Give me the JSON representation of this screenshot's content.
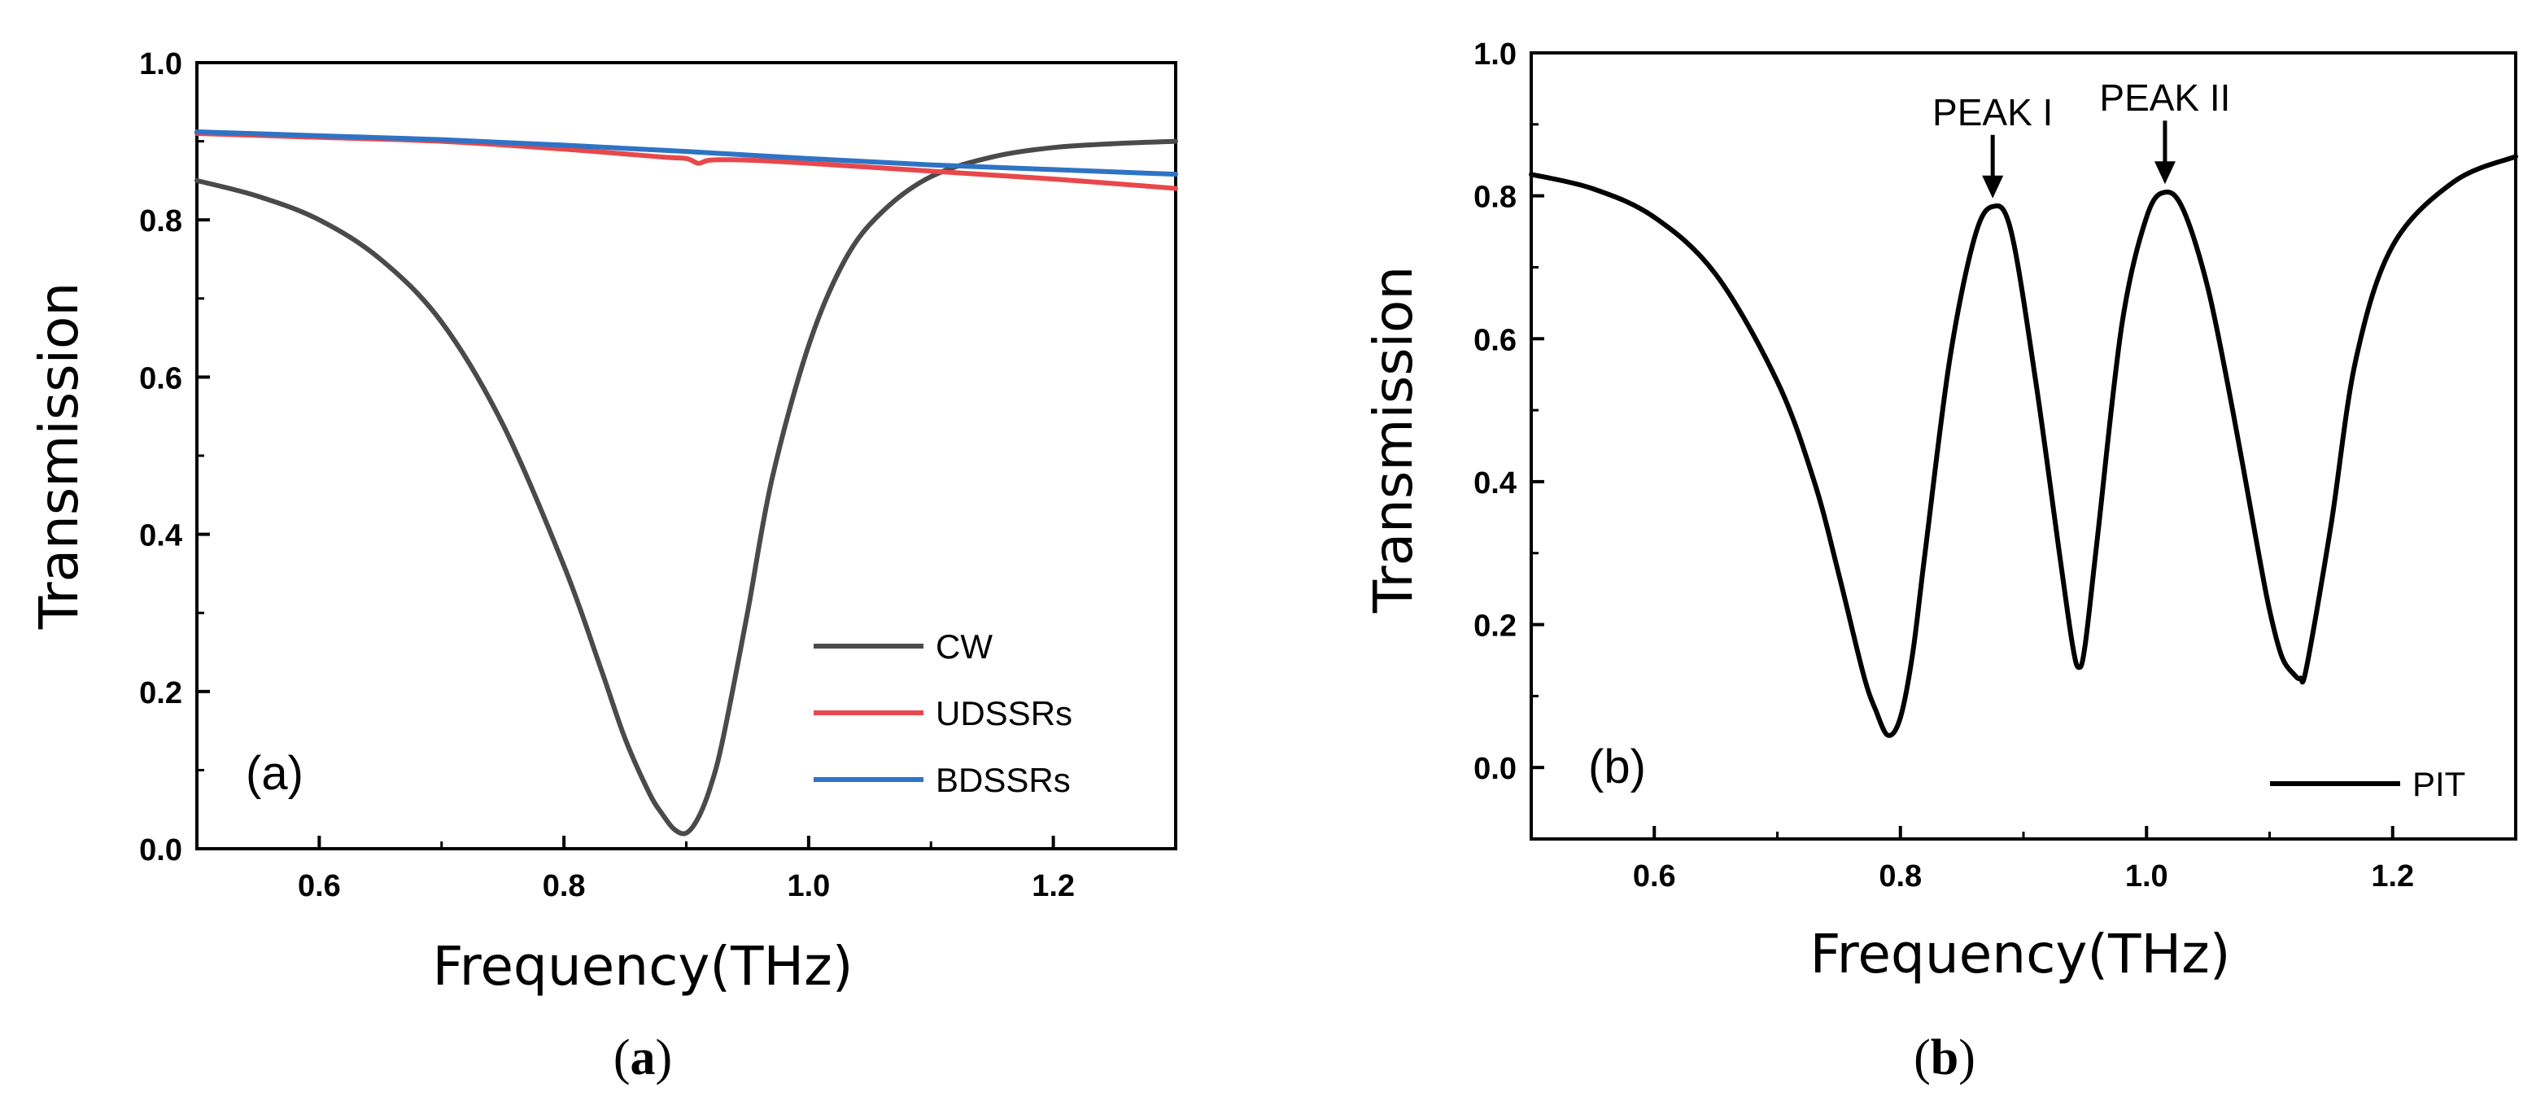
{
  "chart_data": [
    {
      "type": "line",
      "panel_tag": "(a)",
      "caption_open": "(",
      "caption_letter": "a",
      "caption_close": ")",
      "xlabel": "Frequency(THz)",
      "ylabel": "Transmission",
      "xlim": [
        0.5,
        1.3
      ],
      "ylim": [
        0.0,
        1.0
      ],
      "xticks": [
        0.6,
        0.8,
        1.0,
        1.2
      ],
      "xtick_labels": [
        "0.6",
        "0.8",
        "1.0",
        "1.2"
      ],
      "yticks": [
        0.0,
        0.2,
        0.4,
        0.6,
        0.8,
        1.0
      ],
      "ytick_labels": [
        "0.0",
        "0.2",
        "0.4",
        "0.6",
        "0.8",
        "1.0"
      ],
      "legend_position": "bottom-right",
      "series": [
        {
          "name": "CW",
          "color": "#4a4a4a",
          "x": [
            0.5,
            0.55,
            0.6,
            0.65,
            0.7,
            0.75,
            0.8,
            0.83,
            0.85,
            0.87,
            0.88,
            0.89,
            0.9,
            0.91,
            0.92,
            0.93,
            0.95,
            0.97,
            1.0,
            1.03,
            1.06,
            1.1,
            1.15,
            1.2,
            1.25,
            1.3
          ],
          "y": [
            0.85,
            0.83,
            0.8,
            0.75,
            0.67,
            0.54,
            0.36,
            0.23,
            0.14,
            0.07,
            0.045,
            0.025,
            0.02,
            0.04,
            0.08,
            0.14,
            0.3,
            0.47,
            0.64,
            0.75,
            0.81,
            0.855,
            0.88,
            0.892,
            0.897,
            0.9
          ]
        },
        {
          "name": "UDSSRs",
          "color": "#e8474c",
          "x": [
            0.5,
            0.6,
            0.7,
            0.8,
            0.88,
            0.9,
            0.91,
            0.92,
            0.95,
            1.0,
            1.1,
            1.2,
            1.3
          ],
          "y": [
            0.91,
            0.905,
            0.9,
            0.89,
            0.88,
            0.878,
            0.872,
            0.876,
            0.876,
            0.872,
            0.862,
            0.852,
            0.84
          ]
        },
        {
          "name": "BDSSRs",
          "color": "#2f73c4",
          "x": [
            0.5,
            0.6,
            0.7,
            0.8,
            0.9,
            1.0,
            1.1,
            1.2,
            1.3
          ],
          "y": [
            0.912,
            0.907,
            0.902,
            0.895,
            0.887,
            0.878,
            0.87,
            0.864,
            0.858
          ]
        }
      ]
    },
    {
      "type": "line",
      "panel_tag": "(b)",
      "caption_open": "(",
      "caption_letter": "b",
      "caption_close": ")",
      "xlabel": "Frequency(THz)",
      "ylabel": "Transmission",
      "xlim": [
        0.5,
        1.3
      ],
      "ylim": [
        -0.1,
        1.0
      ],
      "xticks": [
        0.6,
        0.8,
        1.0,
        1.2
      ],
      "xtick_labels": [
        "0.6",
        "0.8",
        "1.0",
        "1.2"
      ],
      "yticks": [
        0.0,
        0.2,
        0.4,
        0.6,
        0.8,
        1.0
      ],
      "ytick_labels": [
        "0.0",
        "0.2",
        "0.4",
        "0.6",
        "0.8",
        "1.0"
      ],
      "legend_position": "bottom-right",
      "annotations": [
        {
          "text": "PEAK I",
          "x": 0.875,
          "y": 0.785
        },
        {
          "text": "PEAK II",
          "x": 1.015,
          "y": 0.805
        }
      ],
      "series": [
        {
          "name": "PIT",
          "color": "#000000",
          "x": [
            0.5,
            0.55,
            0.6,
            0.65,
            0.7,
            0.73,
            0.75,
            0.77,
            0.78,
            0.79,
            0.8,
            0.81,
            0.82,
            0.84,
            0.86,
            0.875,
            0.89,
            0.91,
            0.93,
            0.94,
            0.945,
            0.95,
            0.96,
            0.98,
            1.0,
            1.015,
            1.03,
            1.05,
            1.07,
            1.09,
            1.1,
            1.11,
            1.12,
            1.125,
            1.13,
            1.15,
            1.17,
            1.2,
            1.25,
            1.3
          ],
          "y": [
            0.83,
            0.81,
            0.77,
            0.69,
            0.54,
            0.4,
            0.27,
            0.13,
            0.08,
            0.045,
            0.07,
            0.16,
            0.3,
            0.57,
            0.74,
            0.785,
            0.75,
            0.54,
            0.29,
            0.17,
            0.14,
            0.17,
            0.32,
            0.62,
            0.77,
            0.805,
            0.78,
            0.67,
            0.5,
            0.31,
            0.22,
            0.155,
            0.13,
            0.125,
            0.14,
            0.34,
            0.57,
            0.73,
            0.82,
            0.855
          ]
        }
      ]
    }
  ]
}
